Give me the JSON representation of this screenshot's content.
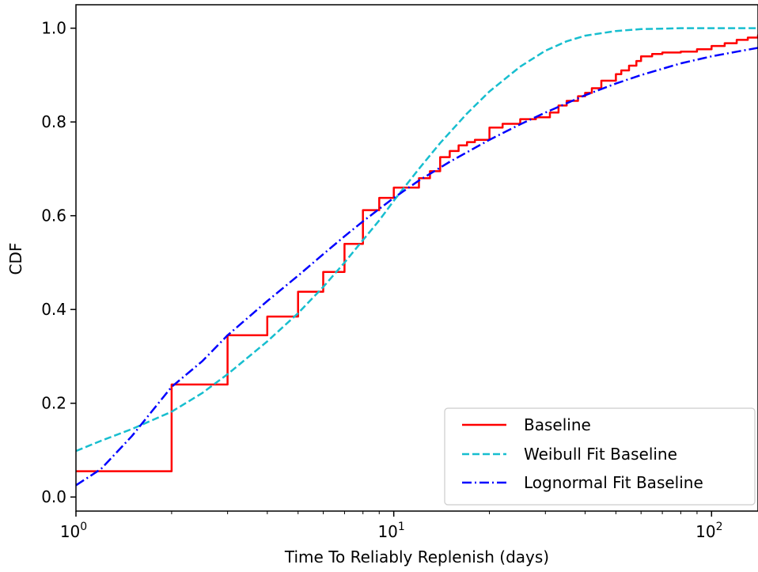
{
  "chart_data": {
    "type": "line",
    "title": "",
    "xlabel": "Time To Reliably Replenish (days)",
    "ylabel": "CDF",
    "x_scale": "log",
    "xlim": [
      1,
      140
    ],
    "ylim": [
      -0.03,
      1.05
    ],
    "x_ticks": [
      {
        "value": 1,
        "label_base": "10",
        "label_exp": "0"
      },
      {
        "value": 10,
        "label_base": "10",
        "label_exp": "1"
      },
      {
        "value": 100,
        "label_base": "10",
        "label_exp": "2"
      }
    ],
    "y_ticks": [
      {
        "value": 0.0,
        "label": "0.0"
      },
      {
        "value": 0.2,
        "label": "0.2"
      },
      {
        "value": 0.4,
        "label": "0.4"
      },
      {
        "value": 0.6,
        "label": "0.6"
      },
      {
        "value": 0.8,
        "label": "0.8"
      },
      {
        "value": 1.0,
        "label": "1.0"
      }
    ],
    "grid": false,
    "legend_position": "bottom-right",
    "series": [
      {
        "name": "Baseline",
        "color": "#ff0000",
        "style": "solid",
        "kind": "step",
        "x": [
          1,
          2,
          3,
          4,
          5,
          6,
          7,
          8,
          9,
          10,
          12,
          13,
          14,
          15,
          16,
          17,
          18,
          20,
          22,
          25,
          28,
          31,
          33,
          35,
          38,
          40,
          42,
          45,
          50,
          52,
          55,
          58,
          60,
          65,
          70,
          80,
          90,
          100,
          110,
          120,
          130,
          140
        ],
        "y": [
          0.055,
          0.24,
          0.345,
          0.385,
          0.438,
          0.48,
          0.54,
          0.612,
          0.638,
          0.66,
          0.68,
          0.695,
          0.725,
          0.738,
          0.75,
          0.757,
          0.762,
          0.788,
          0.796,
          0.806,
          0.81,
          0.82,
          0.835,
          0.845,
          0.855,
          0.862,
          0.872,
          0.888,
          0.902,
          0.91,
          0.92,
          0.93,
          0.94,
          0.945,
          0.948,
          0.95,
          0.955,
          0.962,
          0.968,
          0.975,
          0.98,
          0.985
        ]
      },
      {
        "name": "Weibull Fit Baseline",
        "color": "#17becf",
        "style": "dashed",
        "kind": "line",
        "x": [
          1,
          1.2,
          1.5,
          2,
          2.5,
          3,
          4,
          5,
          6,
          7,
          8,
          9,
          10,
          12,
          14,
          17,
          20,
          25,
          30,
          35,
          40,
          50,
          60,
          70,
          80,
          100,
          120,
          140
        ],
        "y": [
          0.098,
          0.12,
          0.145,
          0.182,
          0.222,
          0.262,
          0.332,
          0.392,
          0.448,
          0.5,
          0.548,
          0.59,
          0.632,
          0.7,
          0.755,
          0.818,
          0.865,
          0.918,
          0.952,
          0.972,
          0.984,
          0.994,
          0.998,
          0.999,
          1.0,
          1.0,
          1.0,
          1.0
        ]
      },
      {
        "name": "Lognormal Fit Baseline",
        "color": "#0000ff",
        "style": "dashdot",
        "kind": "line",
        "x": [
          1,
          1.2,
          1.5,
          2,
          2.5,
          3,
          4,
          5,
          6,
          7,
          8,
          10,
          12,
          15,
          20,
          25,
          30,
          40,
          50,
          60,
          80,
          100,
          120,
          140
        ],
        "y": [
          0.025,
          0.06,
          0.13,
          0.235,
          0.29,
          0.345,
          0.418,
          0.472,
          0.518,
          0.556,
          0.588,
          0.638,
          0.675,
          0.715,
          0.762,
          0.795,
          0.82,
          0.857,
          0.882,
          0.9,
          0.925,
          0.94,
          0.95,
          0.958
        ]
      }
    ]
  }
}
